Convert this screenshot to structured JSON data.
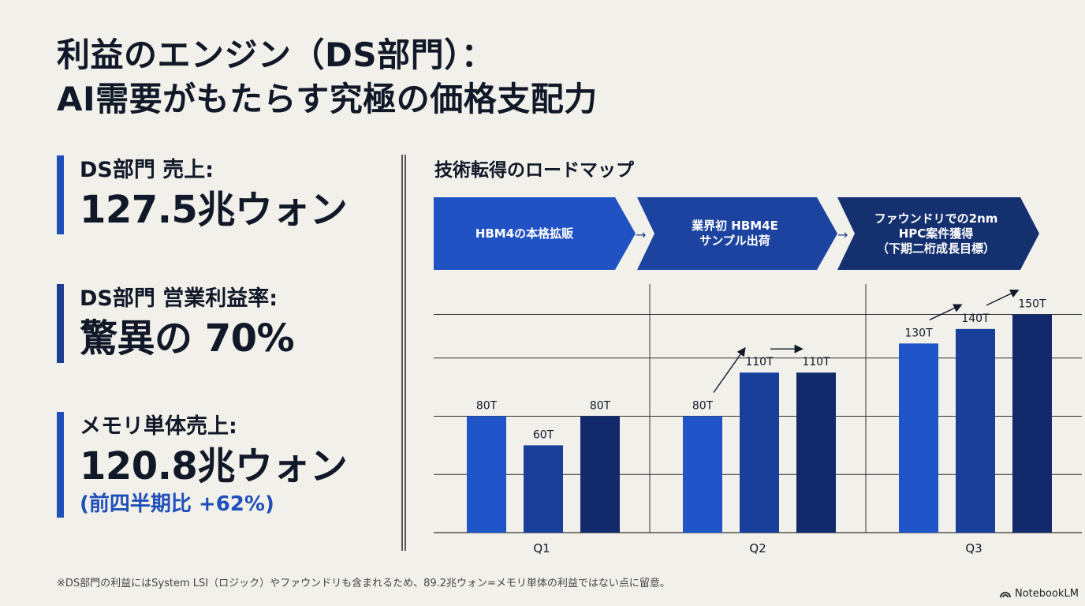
{
  "title": {
    "line1": "利益のエンジン（DS部門）：",
    "line2": "AI需要がもたらす究極の価格支配力"
  },
  "kpis": [
    {
      "label": "DS部門 売上:",
      "value": "127.5兆ウォン",
      "sub": ""
    },
    {
      "label": "DS部門 営業利益率:",
      "value": "驚異の 70%",
      "sub": ""
    },
    {
      "label": "メモリ単体売上:",
      "value": "120.8兆ウォン",
      "sub": "(前四半期比 +62%)"
    }
  ],
  "roadmap": {
    "title": "技術転得のロードマップ",
    "phases": [
      {
        "label": "HBM4の本格拡販"
      },
      {
        "label": "業界初 HBM4E\nサンプル出荷"
      },
      {
        "label": "ファウンドリでの2nm\nHPC案件獲得\n（下期二桁成長目標）"
      }
    ]
  },
  "colors": {
    "accent": "#1f4fb8",
    "bar_light": "#1f55c9",
    "bar_mid": "#1a3f9b",
    "bar_dark": "#122a6b",
    "phase1": "#2152c4",
    "phase2": "#1c439f",
    "phase3": "#15306f"
  },
  "chart_data": {
    "type": "bar",
    "categories": [
      "Q1",
      "Q2",
      "Q3"
    ],
    "values": [
      [
        80,
        60,
        80
      ],
      [
        80,
        110,
        110
      ],
      [
        130,
        140,
        150
      ]
    ],
    "labels": [
      [
        "80T",
        "60T",
        "80T"
      ],
      [
        "80T",
        "110T",
        "110T"
      ],
      [
        "130T",
        "140T",
        "150T"
      ]
    ],
    "growth_arrows": [
      [
        1,
        0
      ],
      [
        1,
        1
      ],
      [
        2,
        0
      ],
      [
        2,
        1
      ]
    ],
    "title": "",
    "xlabel": "",
    "ylabel": "",
    "ylim": [
      0,
      160
    ],
    "grid": true
  },
  "footnote": "※DS部門の利益にはSystem LSI（ロジック）やファウンドリも含まれるため、89.2兆ウォン=メモリ単体の利益ではない点に留意。",
  "brand": {
    "name": "NotebookLM",
    "icon": "notebooklm-logo-icon"
  }
}
